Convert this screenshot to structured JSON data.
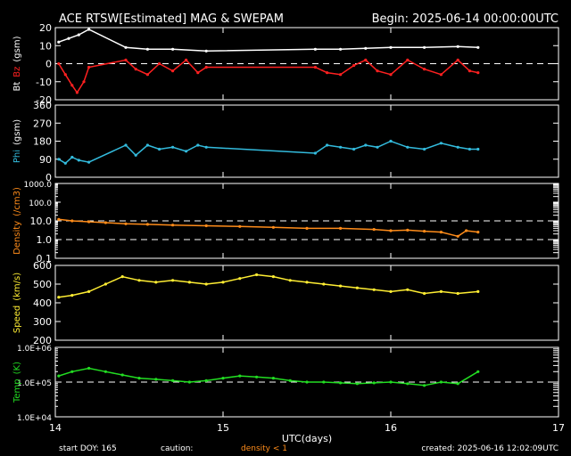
{
  "header": {
    "title": "ACE RTSW[Estimated] MAG & SWEPAM",
    "begin": "Begin: 2025-06-14 00:00:00UTC"
  },
  "footer": {
    "start_doy": "start DOY: 165",
    "caution": "caution:",
    "density_note": "density < 1",
    "created": "created: 2025-06-16 12:02:09UTC"
  },
  "colors": {
    "bt": "#ffffff",
    "bz": "#ff2020",
    "phi": "#33bbdd",
    "density": "#ff8c1a",
    "speed": "#ffee33",
    "temp": "#22dd22",
    "density_note": "#ff8c1a"
  },
  "chart_data": [
    {
      "type": "scatter",
      "ylabel_a": "Bt",
      "ylabel_b": "Bz",
      "ylabel_c": "(gsm)",
      "ylim": [
        -20,
        20
      ],
      "yticks": [
        "20",
        "10",
        "0",
        "-10",
        "-20"
      ],
      "reference_lines": [
        0
      ],
      "series": [
        {
          "name": "Bt",
          "color_key": "bt",
          "points": [
            [
              14.02,
              12
            ],
            [
              14.08,
              14
            ],
            [
              14.14,
              16
            ],
            [
              14.2,
              19
            ],
            [
              14.42,
              9
            ],
            [
              14.55,
              8
            ],
            [
              14.7,
              8
            ],
            [
              14.9,
              7
            ],
            [
              15.55,
              8
            ],
            [
              15.7,
              8
            ],
            [
              15.85,
              8.5
            ],
            [
              16.0,
              9
            ],
            [
              16.2,
              9
            ],
            [
              16.4,
              9.5
            ],
            [
              16.52,
              9
            ]
          ]
        },
        {
          "name": "Bz",
          "color_key": "bz",
          "points": [
            [
              14.02,
              0
            ],
            [
              14.06,
              -6
            ],
            [
              14.1,
              -12
            ],
            [
              14.13,
              -16
            ],
            [
              14.17,
              -10
            ],
            [
              14.2,
              -2
            ],
            [
              14.42,
              2
            ],
            [
              14.48,
              -3
            ],
            [
              14.55,
              -6
            ],
            [
              14.62,
              0
            ],
            [
              14.7,
              -4
            ],
            [
              14.78,
              2
            ],
            [
              14.85,
              -5
            ],
            [
              14.9,
              -2
            ],
            [
              15.55,
              -2
            ],
            [
              15.62,
              -5
            ],
            [
              15.7,
              -6
            ],
            [
              15.78,
              -1
            ],
            [
              15.85,
              2
            ],
            [
              15.92,
              -4
            ],
            [
              16.0,
              -6
            ],
            [
              16.1,
              2
            ],
            [
              16.2,
              -3
            ],
            [
              16.3,
              -6
            ],
            [
              16.4,
              2
            ],
            [
              16.47,
              -4
            ],
            [
              16.52,
              -5
            ]
          ]
        }
      ]
    },
    {
      "type": "scatter",
      "ylabel_a": "Phi",
      "ylabel_b": "(gsm)",
      "ylim": [
        0,
        360
      ],
      "yticks": [
        "360",
        "270",
        "180",
        "90",
        "0"
      ],
      "series": [
        {
          "name": "Phi",
          "color_key": "phi",
          "points": [
            [
              14.02,
              90
            ],
            [
              14.06,
              70
            ],
            [
              14.1,
              100
            ],
            [
              14.14,
              85
            ],
            [
              14.2,
              75
            ],
            [
              14.42,
              160
            ],
            [
              14.48,
              110
            ],
            [
              14.55,
              160
            ],
            [
              14.62,
              140
            ],
            [
              14.7,
              150
            ],
            [
              14.78,
              130
            ],
            [
              14.85,
              160
            ],
            [
              14.9,
              150
            ],
            [
              15.55,
              120
            ],
            [
              15.62,
              160
            ],
            [
              15.7,
              150
            ],
            [
              15.78,
              140
            ],
            [
              15.85,
              160
            ],
            [
              15.92,
              150
            ],
            [
              16.0,
              180
            ],
            [
              16.1,
              150
            ],
            [
              16.2,
              140
            ],
            [
              16.3,
              170
            ],
            [
              16.4,
              150
            ],
            [
              16.47,
              140
            ],
            [
              16.52,
              140
            ]
          ]
        }
      ]
    },
    {
      "type": "scatter",
      "ylabel_a": "Density",
      "ylabel_b": "(/cm3)",
      "yscale": "log",
      "ylim": [
        0.1,
        1000
      ],
      "yticks": [
        "1000.0",
        "100.0",
        "10.0",
        "1.0",
        "0.1"
      ],
      "reference_lines": [
        10,
        1
      ],
      "series": [
        {
          "name": "Density",
          "color_key": "density",
          "points": [
            [
              14.02,
              12
            ],
            [
              14.1,
              10
            ],
            [
              14.2,
              9
            ],
            [
              14.3,
              8
            ],
            [
              14.42,
              7
            ],
            [
              14.55,
              6.5
            ],
            [
              14.7,
              6
            ],
            [
              14.9,
              5.5
            ],
            [
              15.1,
              5
            ],
            [
              15.3,
              4.5
            ],
            [
              15.5,
              4
            ],
            [
              15.7,
              4
            ],
            [
              15.9,
              3.5
            ],
            [
              16.0,
              3
            ],
            [
              16.1,
              3.2
            ],
            [
              16.2,
              2.8
            ],
            [
              16.3,
              2.5
            ],
            [
              16.4,
              1.5
            ],
            [
              16.45,
              3
            ],
            [
              16.52,
              2.5
            ]
          ]
        }
      ]
    },
    {
      "type": "scatter",
      "ylabel_a": "Speed",
      "ylabel_b": "(km/s)",
      "ylim": [
        200,
        600
      ],
      "yticks": [
        "600",
        "500",
        "400",
        "300",
        "200"
      ],
      "series": [
        {
          "name": "Speed",
          "color_key": "speed",
          "points": [
            [
              14.02,
              430
            ],
            [
              14.1,
              440
            ],
            [
              14.2,
              460
            ],
            [
              14.3,
              500
            ],
            [
              14.4,
              540
            ],
            [
              14.5,
              520
            ],
            [
              14.6,
              510
            ],
            [
              14.7,
              520
            ],
            [
              14.8,
              510
            ],
            [
              14.9,
              500
            ],
            [
              15.0,
              510
            ],
            [
              15.1,
              530
            ],
            [
              15.2,
              550
            ],
            [
              15.3,
              540
            ],
            [
              15.4,
              520
            ],
            [
              15.5,
              510
            ],
            [
              15.6,
              500
            ],
            [
              15.7,
              490
            ],
            [
              15.8,
              480
            ],
            [
              15.9,
              470
            ],
            [
              16.0,
              460
            ],
            [
              16.1,
              470
            ],
            [
              16.2,
              450
            ],
            [
              16.3,
              460
            ],
            [
              16.4,
              450
            ],
            [
              16.52,
              460
            ]
          ]
        }
      ]
    },
    {
      "type": "scatter",
      "ylabel_a": "Temp",
      "ylabel_b": "(K)",
      "yscale": "log",
      "ylim": [
        10000,
        1000000
      ],
      "yticks": [
        "1.0E+06",
        "1.0E+05",
        "1.0E+04"
      ],
      "reference_lines": [
        100000
      ],
      "xlabel": "UTC(days)",
      "xlim": [
        14,
        17
      ],
      "xticks": [
        "14",
        "15",
        "16",
        "17"
      ],
      "series": [
        {
          "name": "Temp",
          "color_key": "temp",
          "points": [
            [
              14.02,
              150000
            ],
            [
              14.1,
              200000
            ],
            [
              14.2,
              250000
            ],
            [
              14.3,
              200000
            ],
            [
              14.4,
              160000
            ],
            [
              14.5,
              130000
            ],
            [
              14.6,
              120000
            ],
            [
              14.7,
              110000
            ],
            [
              14.8,
              100000
            ],
            [
              14.9,
              110000
            ],
            [
              15.0,
              130000
            ],
            [
              15.1,
              150000
            ],
            [
              15.2,
              140000
            ],
            [
              15.3,
              130000
            ],
            [
              15.4,
              110000
            ],
            [
              15.5,
              100000
            ],
            [
              15.6,
              100000
            ],
            [
              15.7,
              95000
            ],
            [
              15.8,
              90000
            ],
            [
              15.9,
              95000
            ],
            [
              16.0,
              100000
            ],
            [
              16.1,
              90000
            ],
            [
              16.2,
              80000
            ],
            [
              16.3,
              100000
            ],
            [
              16.4,
              90000
            ],
            [
              16.52,
              200000
            ]
          ]
        }
      ]
    }
  ]
}
